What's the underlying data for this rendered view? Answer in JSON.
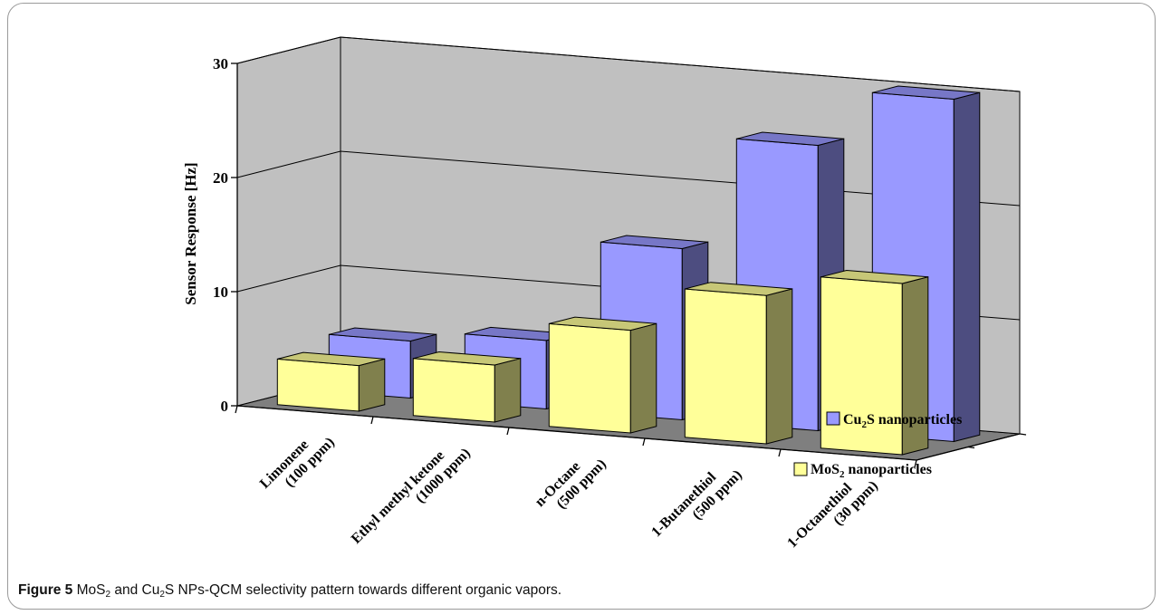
{
  "chart_data": {
    "type": "bar",
    "subtype": "3d-clustered",
    "ylabel": "Sensor Response [Hz]",
    "ylim": [
      0,
      30
    ],
    "yticks": [
      "0",
      "10",
      "20",
      "30"
    ],
    "grid": true,
    "categories": [
      [
        "Limonene",
        "(100 ppm)"
      ],
      [
        "Ethyl methyl ketone",
        "(1000 ppm)"
      ],
      [
        "n-Octane",
        "(500 ppm)"
      ],
      [
        "1-Butanethiol",
        "(500 ppm)"
      ],
      [
        "1-Octanethiol",
        "(30 ppm)"
      ]
    ],
    "series": [
      {
        "name": "Cu2S nanoparticles",
        "name_main": "Cu",
        "name_sub": "2",
        "name_rest": "S nanoparticles",
        "color": "#9999FF",
        "values": [
          5,
          6,
          15,
          25,
          30
        ]
      },
      {
        "name": "MoS2 nanoparticles",
        "name_main": "MoS",
        "name_sub": "2",
        "name_rest": " nanoparticles",
        "color": "#FFFF99",
        "values": [
          4,
          5,
          9,
          13,
          15
        ]
      }
    ],
    "legend_position": "right"
  },
  "caption": {
    "label": "Figure 5",
    "pre": " MoS",
    "sub1": "2",
    "mid": " and Cu",
    "sub2": "2",
    "post": "S NPs-QCM selectivity pattern towards different organic vapors."
  }
}
